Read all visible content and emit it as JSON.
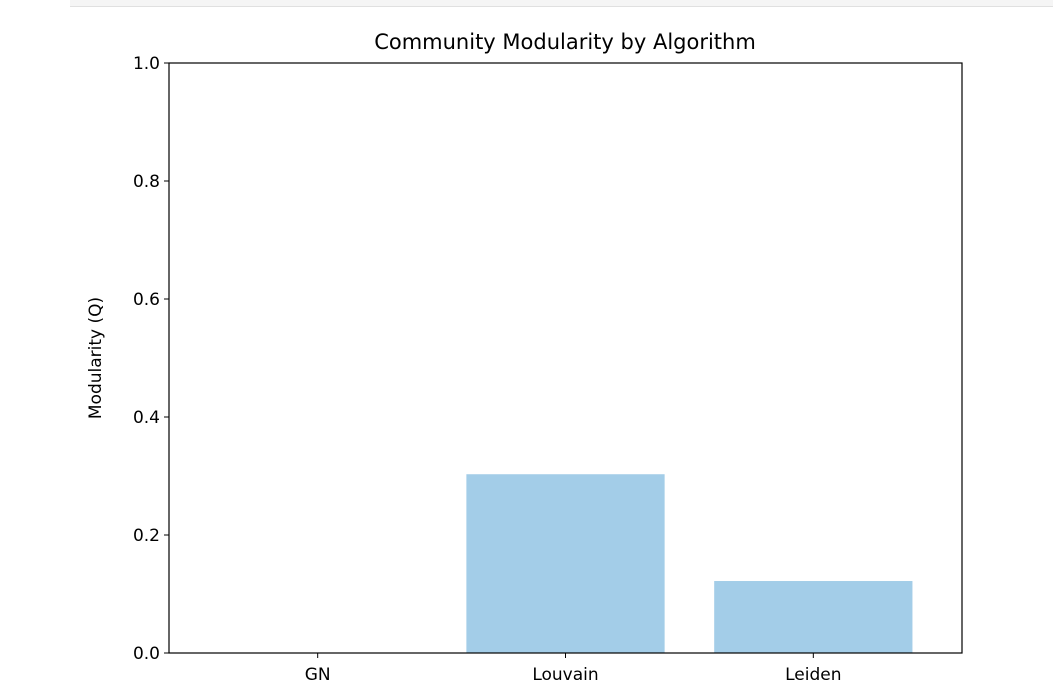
{
  "chart_data": {
    "type": "bar",
    "title": "Community Modularity by Algorithm",
    "xlabel": "",
    "ylabel": "Modularity (Q)",
    "categories": [
      "GN",
      "Louvain",
      "Leiden"
    ],
    "values": [
      0.0,
      0.303,
      0.122
    ],
    "ylim": [
      0,
      1.0
    ],
    "yticks": [
      "0.0",
      "0.2",
      "0.4",
      "0.6",
      "0.8",
      "1.0"
    ],
    "bar_color": "#a3cde8",
    "grid": false,
    "legend": "none"
  }
}
